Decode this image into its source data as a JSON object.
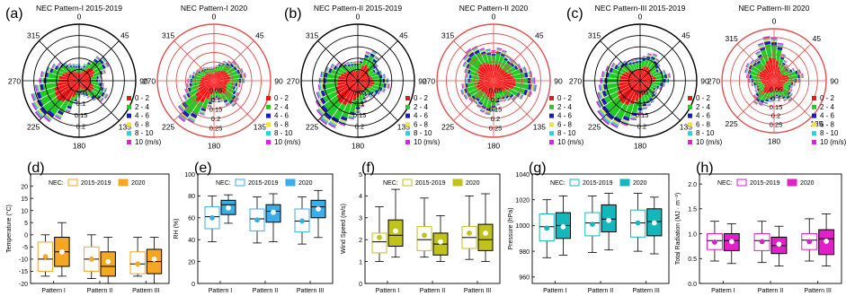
{
  "roses": [
    {
      "panel_label": "(a)",
      "title": "NEC Pattern-I 2015-2019",
      "angles": [
        "0",
        "45",
        "90",
        "135",
        "180",
        "225",
        "270",
        "315"
      ],
      "radial_ticks": [
        "0.05",
        "0.1",
        "0.15",
        "0.2"
      ],
      "ring_color": "#000000",
      "circle_color": "#000000"
    },
    {
      "panel_label": "",
      "title": "NEC Pattern-I 2020",
      "angles": [
        "0",
        "45",
        "90",
        "135",
        "180",
        "225",
        "270",
        "315"
      ],
      "radial_ticks": [
        "0.05",
        "0.1",
        "0.15",
        "0.2",
        "0.25"
      ],
      "ring_color": "#e05050",
      "circle_color": "#e05050"
    },
    {
      "panel_label": "(b)",
      "title": "NEC Pattern-II 2015-2019",
      "angles": [
        "0",
        "45",
        "90",
        "135",
        "180",
        "225",
        "270",
        "315"
      ],
      "radial_ticks": [
        "0.05",
        "0.1",
        "0.15",
        "0.2"
      ],
      "ring_color": "#000000",
      "circle_color": "#000000"
    },
    {
      "panel_label": "",
      "title": "NEC Pattern-II 2020",
      "angles": [
        "0",
        "45",
        "90",
        "135",
        "180",
        "225",
        "270",
        "315"
      ],
      "radial_ticks": [
        "0.05",
        "0.1",
        "0.15",
        "0.2",
        "0.25"
      ],
      "ring_color": "#e05050",
      "circle_color": "#e05050"
    },
    {
      "panel_label": "(c)",
      "title": "NEC Pattern-III 2015-2019",
      "angles": [
        "0",
        "45",
        "90",
        "135",
        "180",
        "225",
        "270",
        "315"
      ],
      "radial_ticks": [
        "0.05",
        "0.1",
        "0.15",
        "0.2"
      ],
      "ring_color": "#000000",
      "circle_color": "#000000"
    },
    {
      "panel_label": "",
      "title": "NEC Pattern-III 2020",
      "angles": [
        "0",
        "45",
        "90",
        "135",
        "180",
        "225",
        "270",
        "315"
      ],
      "radial_ticks": [
        "0.05",
        "0.1",
        "0.15",
        "0.2",
        "0.25"
      ],
      "ring_color": "#e05050",
      "circle_color": "#e05050"
    }
  ],
  "rose_legend": {
    "entries": [
      "0 - 2",
      "2 - 4",
      "4 - 6",
      "6 - 8",
      "8 - 10",
      "10 (m/s)"
    ],
    "colors": [
      "#ff1010",
      "#22cc22",
      "#1a1acc",
      "#f0e040",
      "#30d0d8",
      "#dd22dd"
    ]
  },
  "chart_data": [
    {
      "type": "box",
      "panel_label": "(d)",
      "ylabel": "Temperature (°C)",
      "color": "#f5a623",
      "legend": {
        "prefix": "NEC:",
        "entries": [
          "2015-2019",
          "2020"
        ]
      },
      "categories": [
        "Pattern I",
        "Pattern II",
        "Pattern III"
      ],
      "ylim": [
        -20,
        25
      ],
      "yticks": [
        "-20",
        "-15",
        "-10",
        "-5",
        "0",
        "5",
        "10",
        "15",
        "20"
      ],
      "series": [
        {
          "name": "2015-2019",
          "boxes": [
            {
              "min": -17,
              "q1": -15,
              "median": -10,
              "q3": -3,
              "max": 0,
              "mean": -9
            },
            {
              "min": -18,
              "q1": -15,
              "median": -10,
              "q3": -5,
              "max": 0,
              "mean": -10
            },
            {
              "min": -17,
              "q1": -16,
              "median": -12,
              "q3": -7,
              "max": -1,
              "mean": -12
            }
          ]
        },
        {
          "name": "2020",
          "boxes": [
            {
              "min": -17,
              "q1": -13,
              "median": -7,
              "q3": -1,
              "max": 5,
              "mean": -7
            },
            {
              "min": -20,
              "q1": -17,
              "median": -13,
              "q3": -7,
              "max": -1,
              "mean": -11
            },
            {
              "min": -20,
              "q1": -16,
              "median": -11,
              "q3": -6,
              "max": -1,
              "mean": -10
            }
          ]
        }
      ]
    },
    {
      "type": "box",
      "panel_label": "(e)",
      "ylabel": "RH (%)",
      "color": "#3aaee6",
      "legend": {
        "prefix": "NEC:",
        "entries": [
          "2015-2019",
          "2020"
        ]
      },
      "categories": [
        "Pattern I",
        "Pattern II",
        "Pattern III"
      ],
      "ylim": [
        0,
        100
      ],
      "yticks": [
        "0",
        "20",
        "40",
        "60",
        "80",
        "100"
      ],
      "series": [
        {
          "name": "2015-2019",
          "boxes": [
            {
              "min": 38,
              "q1": 50,
              "median": 61,
              "q3": 70,
              "max": 80,
              "mean": 60
            },
            {
              "min": 37,
              "q1": 48,
              "median": 59,
              "q3": 68,
              "max": 79,
              "mean": 58
            },
            {
              "min": 36,
              "q1": 47,
              "median": 57,
              "q3": 68,
              "max": 79,
              "mean": 57
            }
          ]
        },
        {
          "name": "2020",
          "boxes": [
            {
              "min": 55,
              "q1": 63,
              "median": 72,
              "q3": 76,
              "max": 81,
              "mean": 69
            },
            {
              "min": 38,
              "q1": 56,
              "median": 66,
              "q3": 72,
              "max": 82,
              "mean": 65
            },
            {
              "min": 42,
              "q1": 60,
              "median": 70,
              "q3": 76,
              "max": 85,
              "mean": 68
            }
          ]
        }
      ]
    },
    {
      "type": "box",
      "panel_label": "(f)",
      "ylabel": "Wind Speed (m/s)",
      "color": "#c2c21c",
      "legend": {
        "prefix": "NEC:",
        "entries": [
          "2015-2019",
          "2020"
        ]
      },
      "categories": [
        "Pattern I",
        "Pattern II",
        "Pattern III"
      ],
      "ylim": [
        0,
        5
      ],
      "yticks": [
        "0",
        "1",
        "2",
        "3",
        "4",
        "5"
      ],
      "series": [
        {
          "name": "2015-2019",
          "boxes": [
            {
              "min": 1.0,
              "q1": 1.4,
              "median": 1.9,
              "q3": 2.3,
              "max": 3.5,
              "mean": 2.1
            },
            {
              "min": 1.2,
              "q1": 1.5,
              "median": 2.0,
              "q3": 2.6,
              "max": 3.9,
              "mean": 2.2
            },
            {
              "min": 1.1,
              "q1": 1.6,
              "median": 2.1,
              "q3": 2.6,
              "max": 4.0,
              "mean": 2.3
            }
          ]
        },
        {
          "name": "2020",
          "boxes": [
            {
              "min": 1.2,
              "q1": 1.7,
              "median": 2.2,
              "q3": 2.9,
              "max": 4.3,
              "mean": 2.4
            },
            {
              "min": 1.0,
              "q1": 1.3,
              "median": 1.8,
              "q3": 2.3,
              "max": 3.1,
              "mean": 1.9
            },
            {
              "min": 1.0,
              "q1": 1.5,
              "median": 2.0,
              "q3": 2.7,
              "max": 4.1,
              "mean": 2.3
            }
          ]
        }
      ]
    },
    {
      "type": "box",
      "panel_label": "(g)",
      "ylabel": "Pressure (hPa)",
      "color": "#14b8bc",
      "legend": {
        "prefix": "NEC:",
        "entries": [
          "2015-2019",
          "2020"
        ]
      },
      "categories": [
        "Pattern I",
        "Pattern II",
        "Pattern III"
      ],
      "ylim": [
        955,
        1040
      ],
      "yticks": [
        "960",
        "980",
        "1000",
        "1020",
        "1040"
      ],
      "series": [
        {
          "name": "2015-2019",
          "boxes": [
            {
              "min": 975,
              "q1": 988,
              "median": 999,
              "q3": 1009,
              "max": 1020,
              "mean": 998
            },
            {
              "min": 979,
              "q1": 992,
              "median": 1002,
              "q3": 1010,
              "max": 1023,
              "mean": 1001
            },
            {
              "min": 980,
              "q1": 991,
              "median": 1002,
              "q3": 1012,
              "max": 1025,
              "mean": 1002
            }
          ]
        },
        {
          "name": "2020",
          "boxes": [
            {
              "min": 977,
              "q1": 990,
              "median": 1000,
              "q3": 1010,
              "max": 1023,
              "mean": 999
            },
            {
              "min": 981,
              "q1": 995,
              "median": 1005,
              "q3": 1016,
              "max": 1025,
              "mean": 1004
            },
            {
              "min": 978,
              "q1": 992,
              "median": 1003,
              "q3": 1013,
              "max": 1022,
              "mean": 1002
            }
          ]
        }
      ]
    },
    {
      "type": "box",
      "panel_label": "(h)",
      "ylabel": "Total Radiation (MJ · m⁻²)",
      "color": "#e020c8",
      "legend": {
        "prefix": "NEC:",
        "entries": [
          "2015-2019",
          "2020"
        ]
      },
      "categories": [
        "Pattern I",
        "Pattern II",
        "Pattern III"
      ],
      "ylim": [
        0,
        2.2
      ],
      "yticks": [
        "0.0",
        "0.5",
        "1.0",
        "1.5",
        "2.0"
      ],
      "series": [
        {
          "name": "2015-2019",
          "boxes": [
            {
              "min": 0.45,
              "q1": 0.68,
              "median": 0.86,
              "q3": 1.0,
              "max": 1.25,
              "mean": 0.83
            },
            {
              "min": 0.42,
              "q1": 0.66,
              "median": 0.86,
              "q3": 1.0,
              "max": 1.25,
              "mean": 0.84
            },
            {
              "min": 0.45,
              "q1": 0.68,
              "median": 0.87,
              "q3": 1.0,
              "max": 1.3,
              "mean": 0.84
            }
          ]
        },
        {
          "name": "2020",
          "boxes": [
            {
              "min": 0.4,
              "q1": 0.66,
              "median": 0.86,
              "q3": 1.0,
              "max": 1.2,
              "mean": 0.84
            },
            {
              "min": 0.35,
              "q1": 0.6,
              "median": 0.76,
              "q3": 0.93,
              "max": 1.15,
              "mean": 0.79
            },
            {
              "min": 0.35,
              "q1": 0.58,
              "median": 0.9,
              "q3": 1.08,
              "max": 1.4,
              "mean": 0.85
            }
          ]
        }
      ]
    }
  ]
}
